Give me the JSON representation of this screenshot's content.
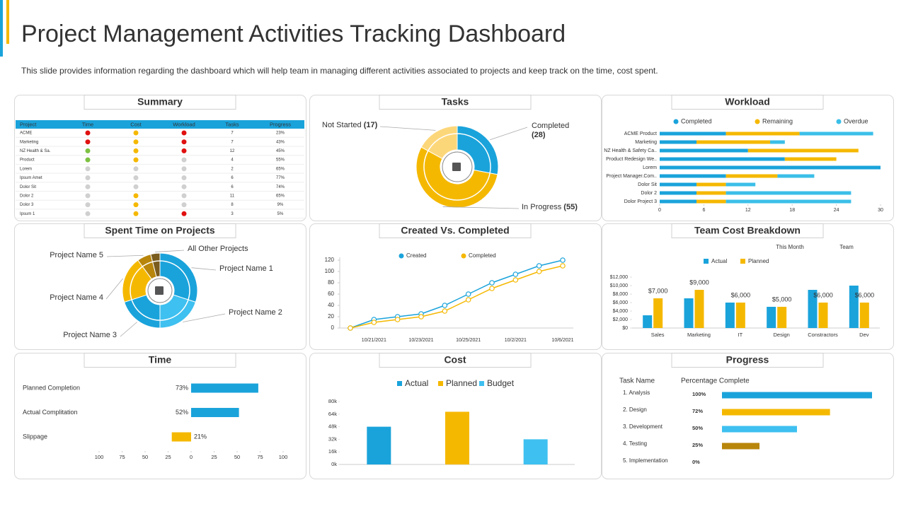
{
  "title": "Project Management Activities Tracking Dashboard",
  "subtitle": "This slide provides information regarding the dashboard which will help team in managing different activities associated to projects and keep track on the time, cost spent.",
  "chart_data": [
    {
      "type": "table",
      "title": "Summary",
      "columns": [
        "Project",
        "Time",
        "Cost",
        "Workload",
        "Tasks",
        "Progress"
      ],
      "rows": [
        {
          "project": "ACME",
          "time": "#e01010",
          "cost": "#f5b800",
          "workload": "#e01010",
          "tasks": "7",
          "progress": "23%"
        },
        {
          "project": "Marketing",
          "time": "#e01010",
          "cost": "#f5b800",
          "workload": "#e01010",
          "tasks": "7",
          "progress": "43%"
        },
        {
          "project": "NZ Health & Sa.",
          "time": "#7dc142",
          "cost": "#f5b800",
          "workload": "#e01010",
          "tasks": "12",
          "progress": "45%"
        },
        {
          "project": "Product",
          "time": "#7dc142",
          "cost": "#f5b800",
          "workload": "#d0d0d0",
          "tasks": "4",
          "progress": "55%"
        },
        {
          "project": "Lorem",
          "time": "#d0d0d0",
          "cost": "#d0d0d0",
          "workload": "#d0d0d0",
          "tasks": "2",
          "progress": "65%"
        },
        {
          "project": "Ipsum Amet",
          "time": "#d0d0d0",
          "cost": "#d0d0d0",
          "workload": "#d0d0d0",
          "tasks": "6",
          "progress": "77%"
        },
        {
          "project": "Dolor Sit",
          "time": "#d0d0d0",
          "cost": "#d0d0d0",
          "workload": "#d0d0d0",
          "tasks": "6",
          "progress": "74%"
        },
        {
          "project": "Dolor 2",
          "time": "#d0d0d0",
          "cost": "#f5b800",
          "workload": "#d0d0d0",
          "tasks": "11",
          "progress": "65%"
        },
        {
          "project": "Dolor 3",
          "time": "#d0d0d0",
          "cost": "#f5b800",
          "workload": "#d0d0d0",
          "tasks": "8",
          "progress": "9%"
        },
        {
          "project": "Ipsum 1",
          "time": "#d0d0d0",
          "cost": "#f5b800",
          "workload": "#e01010",
          "tasks": "3",
          "progress": "5%"
        }
      ]
    },
    {
      "type": "donut",
      "title": "Tasks",
      "categories": [
        "Completed",
        "In Progress",
        "Not Started"
      ],
      "values": [
        28,
        55,
        17
      ],
      "value_labels": [
        "(28)",
        "(55)",
        "(17)"
      ],
      "colors": [
        "#1aa3db",
        "#f5b800",
        "#fcd77a"
      ]
    },
    {
      "type": "hbar_stacked",
      "title": "Workload",
      "categories": [
        "ACME Product",
        "Marketing",
        "NZ Health & Safety Ca..",
        "Product Redesign We..",
        "Lorem",
        "Project Manager.Com..",
        "Dolor Sit",
        "Dolor 2",
        "Dolor Project 3"
      ],
      "series": [
        {
          "name": "Completed",
          "color": "#1aa3db",
          "values": [
            9,
            5,
            12,
            17,
            30,
            9,
            5,
            5,
            5
          ]
        },
        {
          "name": "Remaining",
          "color": "#f5b800",
          "values": [
            10,
            10,
            15,
            7,
            0,
            7,
            4,
            4,
            4
          ]
        },
        {
          "name": "Overdue",
          "color": "#3bbfe8",
          "values": [
            10,
            2,
            0,
            0,
            0,
            5,
            4,
            17,
            17
          ]
        }
      ],
      "xlim": [
        0,
        30
      ],
      "xticks": [
        0,
        6,
        12,
        18,
        24,
        30
      ]
    },
    {
      "type": "donut",
      "title": "Spent Time on Projects",
      "categories": [
        "Project Name 1",
        "Project Name 2",
        "Project Name 3",
        "Project Name 4",
        "Project Name 5",
        "All Other Projects"
      ],
      "values": [
        30,
        20,
        20,
        20,
        6,
        4
      ],
      "colors": [
        "#1aa3db",
        "#3ec0f0",
        "#1aa3db",
        "#f5b800",
        "#b8860b",
        "#7a5c1e"
      ]
    },
    {
      "type": "line",
      "title": "Created Vs. Completed",
      "categories": [
        null,
        "10/21/2021",
        null,
        "10/23/2021",
        null,
        "10/25/2021",
        null,
        "10/2/2021",
        null,
        "10/6/2021"
      ],
      "series": [
        {
          "name": "Created",
          "color": "#1aa3db",
          "values": [
            0,
            15,
            20,
            25,
            40,
            60,
            80,
            95,
            110,
            120
          ]
        },
        {
          "name": "Completed",
          "color": "#f5b800",
          "values": [
            0,
            10,
            15,
            20,
            30,
            50,
            70,
            85,
            100,
            110
          ]
        }
      ],
      "ylim": [
        0,
        120
      ],
      "yticks": [
        0,
        20,
        40,
        60,
        80,
        100,
        120
      ]
    },
    {
      "type": "bar",
      "title": "Team Cost Breakdown",
      "annotations": [
        "This Month",
        "Team"
      ],
      "categories": [
        "Sales",
        "Marketing",
        "IT",
        "Design",
        "Constractors",
        "Dev"
      ],
      "series": [
        {
          "name": "Actual",
          "color": "#1aa3db",
          "values": [
            3000,
            7000,
            6000,
            5000,
            9000,
            10000
          ]
        },
        {
          "name": "Planned",
          "color": "#f5b800",
          "values": [
            7000,
            9000,
            6000,
            5000,
            6000,
            6000
          ],
          "value_labels": [
            "$7,000",
            "$9,000",
            "$6,000",
            "$5,000",
            "$6,000",
            "$6,000"
          ]
        }
      ],
      "ylim": [
        0,
        12000
      ],
      "yticks": [
        {
          "value": 0,
          "label": "$0"
        },
        {
          "value": 2000,
          "label": "$2,000"
        },
        {
          "value": 4000,
          "label": "$4,000"
        },
        {
          "value": 6000,
          "label": "$6,000"
        },
        {
          "value": 8000,
          "label": "$8,000"
        },
        {
          "value": 10000,
          "label": "$10,000"
        },
        {
          "value": 12000,
          "label": "$12,000"
        }
      ]
    },
    {
      "type": "diverging_bar",
      "title": "Time",
      "categories": [
        "Planned Completion",
        "Actual Complitation",
        "Slippage"
      ],
      "values": [
        73,
        52,
        -21
      ],
      "value_labels": [
        "73%",
        "52%",
        "21%"
      ],
      "colors": [
        "#1aa3db",
        "#1aa3db",
        "#f5b800"
      ],
      "xlim": [
        -100,
        100
      ],
      "xticks": [
        {
          "value": -100,
          "label": "100"
        },
        {
          "value": -75,
          "label": "75"
        },
        {
          "value": -50,
          "label": "50"
        },
        {
          "value": -25,
          "label": "25"
        },
        0,
        25,
        50,
        75,
        100
      ]
    },
    {
      "type": "series_bar",
      "title": "Cost",
      "series": [
        {
          "name": "Actual",
          "color": "#1aa3db",
          "values": [
            48000
          ]
        },
        {
          "name": "Planned",
          "color": "#f5b800",
          "values": [
            67000
          ]
        },
        {
          "name": "Budget",
          "color": "#3ec0f0",
          "values": [
            32000
          ]
        }
      ],
      "ylim": [
        0,
        80000
      ],
      "yticks": [
        {
          "value": 0,
          "label": "0k"
        },
        {
          "value": 16000,
          "label": "16k"
        },
        {
          "value": 32000,
          "label": "32k"
        },
        {
          "value": 48000,
          "label": "48k"
        },
        {
          "value": 64000,
          "label": "64k"
        },
        {
          "value": 80000,
          "label": "80k"
        }
      ]
    },
    {
      "type": "progress",
      "title": "Progress",
      "headers": [
        "Task Name",
        "Percentage Complete"
      ],
      "categories": [
        "1. Analysis",
        "2. Design",
        "3. Development",
        "4. Testing",
        "5. Implementation"
      ],
      "values": [
        100,
        72,
        50,
        25,
        0
      ],
      "value_labels": [
        "100%",
        "72%",
        "50%",
        "25%",
        "0%"
      ],
      "colors": [
        "#1aa3db",
        "#f5b800",
        "#3ec0f0",
        "#b8860b",
        "#cccccc"
      ],
      "xlim": [
        0,
        100
      ]
    }
  ]
}
